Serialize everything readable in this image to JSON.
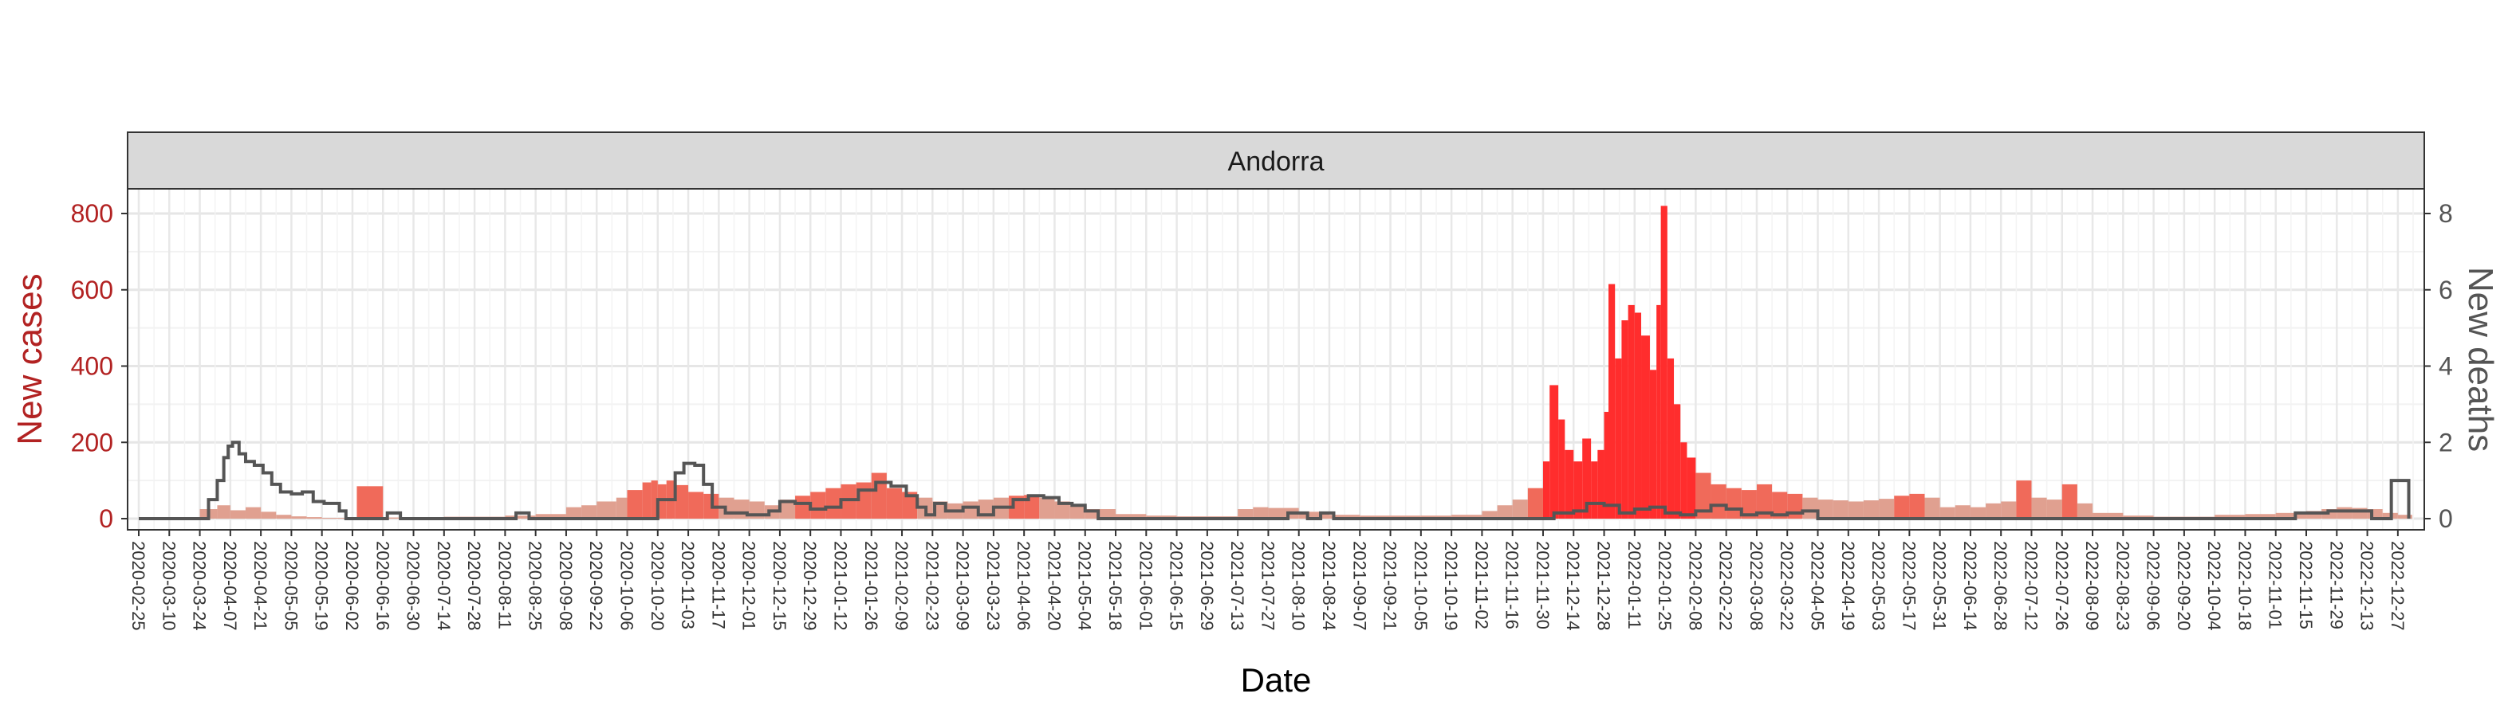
{
  "chart_data": {
    "type": "bar",
    "panel_title": "Andorra",
    "xlabel": "Date",
    "ylabel_left": "New cases",
    "ylabel_right": "New deaths",
    "x_range": [
      "2020-02-25",
      "2023-01-03"
    ],
    "ylim_left": [
      0,
      860
    ],
    "ylim_right": [
      0,
      8.6
    ],
    "y_ticks_left": [
      0,
      200,
      400,
      600,
      800
    ],
    "y_ticks_right": [
      0,
      2,
      4,
      6,
      8
    ],
    "x_tick_labels": [
      "2020-02-25",
      "2020-03-10",
      "2020-03-24",
      "2020-04-07",
      "2020-04-21",
      "2020-05-05",
      "2020-05-19",
      "2020-06-02",
      "2020-06-16",
      "2020-06-30",
      "2020-07-14",
      "2020-07-28",
      "2020-08-11",
      "2020-08-25",
      "2020-09-08",
      "2020-09-22",
      "2020-10-06",
      "2020-10-20",
      "2020-11-03",
      "2020-11-17",
      "2020-12-01",
      "2020-12-15",
      "2020-12-29",
      "2021-01-12",
      "2021-01-26",
      "2021-02-09",
      "2021-02-23",
      "2021-03-09",
      "2021-03-23",
      "2021-04-06",
      "2021-04-20",
      "2021-05-04",
      "2021-05-18",
      "2021-06-01",
      "2021-06-15",
      "2021-06-29",
      "2021-07-13",
      "2021-07-27",
      "2021-08-10",
      "2021-08-24",
      "2021-09-07",
      "2021-09-21",
      "2021-10-05",
      "2021-10-19",
      "2021-11-02",
      "2021-11-16",
      "2021-11-30",
      "2021-12-14",
      "2021-12-28",
      "2022-01-11",
      "2022-01-25",
      "2022-02-08",
      "2022-02-22",
      "2022-03-08",
      "2022-03-22",
      "2022-04-05",
      "2022-04-19",
      "2022-05-03",
      "2022-05-17",
      "2022-05-31",
      "2022-06-14",
      "2022-06-28",
      "2022-07-12",
      "2022-07-26",
      "2022-08-09",
      "2022-08-23",
      "2022-09-06",
      "2022-09-20",
      "2022-10-04",
      "2022-10-18",
      "2022-11-01",
      "2022-11-15",
      "2022-11-29",
      "2022-12-13",
      "2022-12-27"
    ],
    "grid": true,
    "colors": {
      "cases_high": "#ff2d2d",
      "cases_mid": "#f06a5a",
      "cases_low": "#e0a090",
      "deaths_line": "#555555",
      "axis_left_text": "#b22222",
      "axis_right_text": "#555555",
      "strip_fill": "#d9d9d9"
    },
    "series": [
      {
        "name": "New cases",
        "kind": "bars",
        "points": [
          [
            "2020-03-10",
            3
          ],
          [
            "2020-03-24",
            25
          ],
          [
            "2020-04-01",
            35
          ],
          [
            "2020-04-07",
            22
          ],
          [
            "2020-04-14",
            30
          ],
          [
            "2020-04-21",
            18
          ],
          [
            "2020-04-28",
            10
          ],
          [
            "2020-05-05",
            6
          ],
          [
            "2020-05-12",
            4
          ],
          [
            "2020-05-19",
            2
          ],
          [
            "2020-06-04",
            85
          ],
          [
            "2020-06-16",
            3
          ],
          [
            "2020-07-14",
            5
          ],
          [
            "2020-08-11",
            8
          ],
          [
            "2020-08-25",
            12
          ],
          [
            "2020-09-08",
            30
          ],
          [
            "2020-09-15",
            35
          ],
          [
            "2020-09-22",
            45
          ],
          [
            "2020-10-01",
            55
          ],
          [
            "2020-10-06",
            75
          ],
          [
            "2020-10-13",
            95
          ],
          [
            "2020-10-17",
            100
          ],
          [
            "2020-10-20",
            90
          ],
          [
            "2020-10-24",
            100
          ],
          [
            "2020-10-28",
            88
          ],
          [
            "2020-11-03",
            70
          ],
          [
            "2020-11-10",
            65
          ],
          [
            "2020-11-17",
            55
          ],
          [
            "2020-11-24",
            50
          ],
          [
            "2020-12-01",
            45
          ],
          [
            "2020-12-08",
            35
          ],
          [
            "2020-12-15",
            50
          ],
          [
            "2020-12-22",
            60
          ],
          [
            "2020-12-29",
            70
          ],
          [
            "2021-01-05",
            80
          ],
          [
            "2021-01-12",
            90
          ],
          [
            "2021-01-19",
            95
          ],
          [
            "2021-01-26",
            120
          ],
          [
            "2021-02-02",
            80
          ],
          [
            "2021-02-09",
            70
          ],
          [
            "2021-02-16",
            55
          ],
          [
            "2021-02-23",
            45
          ],
          [
            "2021-03-02",
            40
          ],
          [
            "2021-03-09",
            45
          ],
          [
            "2021-03-16",
            50
          ],
          [
            "2021-03-23",
            55
          ],
          [
            "2021-03-30",
            60
          ],
          [
            "2021-04-06",
            62
          ],
          [
            "2021-04-13",
            55
          ],
          [
            "2021-04-20",
            45
          ],
          [
            "2021-04-27",
            35
          ],
          [
            "2021-05-04",
            25
          ],
          [
            "2021-05-18",
            12
          ],
          [
            "2021-06-01",
            8
          ],
          [
            "2021-06-15",
            6
          ],
          [
            "2021-07-13",
            25
          ],
          [
            "2021-07-20",
            30
          ],
          [
            "2021-07-27",
            28
          ],
          [
            "2021-08-10",
            18
          ],
          [
            "2021-08-24",
            10
          ],
          [
            "2021-09-07",
            8
          ],
          [
            "2021-10-05",
            8
          ],
          [
            "2021-10-19",
            10
          ],
          [
            "2021-11-02",
            20
          ],
          [
            "2021-11-09",
            35
          ],
          [
            "2021-11-16",
            50
          ],
          [
            "2021-11-23",
            80
          ],
          [
            "2021-11-30",
            150
          ],
          [
            "2021-12-03",
            350
          ],
          [
            "2021-12-07",
            260
          ],
          [
            "2021-12-10",
            180
          ],
          [
            "2021-12-14",
            150
          ],
          [
            "2021-12-18",
            210
          ],
          [
            "2021-12-22",
            150
          ],
          [
            "2021-12-25",
            180
          ],
          [
            "2021-12-28",
            280
          ],
          [
            "2021-12-30",
            615
          ],
          [
            "2022-01-02",
            420
          ],
          [
            "2022-01-05",
            520
          ],
          [
            "2022-01-08",
            560
          ],
          [
            "2022-01-11",
            540
          ],
          [
            "2022-01-14",
            480
          ],
          [
            "2022-01-18",
            390
          ],
          [
            "2022-01-21",
            560
          ],
          [
            "2022-01-23",
            820
          ],
          [
            "2022-01-26",
            420
          ],
          [
            "2022-01-29",
            300
          ],
          [
            "2022-02-01",
            200
          ],
          [
            "2022-02-04",
            160
          ],
          [
            "2022-02-08",
            120
          ],
          [
            "2022-02-15",
            90
          ],
          [
            "2022-02-22",
            80
          ],
          [
            "2022-03-01",
            75
          ],
          [
            "2022-03-08",
            90
          ],
          [
            "2022-03-15",
            70
          ],
          [
            "2022-03-22",
            65
          ],
          [
            "2022-03-29",
            55
          ],
          [
            "2022-04-05",
            50
          ],
          [
            "2022-04-12",
            48
          ],
          [
            "2022-04-19",
            45
          ],
          [
            "2022-04-26",
            48
          ],
          [
            "2022-05-03",
            52
          ],
          [
            "2022-05-10",
            60
          ],
          [
            "2022-05-17",
            65
          ],
          [
            "2022-05-24",
            55
          ],
          [
            "2022-05-31",
            30
          ],
          [
            "2022-06-07",
            35
          ],
          [
            "2022-06-14",
            30
          ],
          [
            "2022-06-21",
            40
          ],
          [
            "2022-06-28",
            45
          ],
          [
            "2022-07-05",
            100
          ],
          [
            "2022-07-12",
            55
          ],
          [
            "2022-07-19",
            50
          ],
          [
            "2022-07-26",
            90
          ],
          [
            "2022-08-02",
            40
          ],
          [
            "2022-08-09",
            15
          ],
          [
            "2022-08-23",
            8
          ],
          [
            "2022-09-06",
            5
          ],
          [
            "2022-09-20",
            5
          ],
          [
            "2022-10-04",
            10
          ],
          [
            "2022-10-18",
            12
          ],
          [
            "2022-11-01",
            15
          ],
          [
            "2022-11-15",
            20
          ],
          [
            "2022-11-22",
            25
          ],
          [
            "2022-11-29",
            30
          ],
          [
            "2022-12-06",
            28
          ],
          [
            "2022-12-13",
            25
          ],
          [
            "2022-12-20",
            15
          ],
          [
            "2022-12-27",
            10
          ]
        ]
      },
      {
        "name": "New deaths",
        "kind": "line",
        "points": [
          [
            "2020-02-25",
            0
          ],
          [
            "2020-03-20",
            0
          ],
          [
            "2020-03-28",
            0.5
          ],
          [
            "2020-04-01",
            1
          ],
          [
            "2020-04-04",
            1.6
          ],
          [
            "2020-04-06",
            1.9
          ],
          [
            "2020-04-08",
            2
          ],
          [
            "2020-04-11",
            1.7
          ],
          [
            "2020-04-14",
            1.5
          ],
          [
            "2020-04-18",
            1.4
          ],
          [
            "2020-04-22",
            1.2
          ],
          [
            "2020-04-26",
            0.9
          ],
          [
            "2020-04-30",
            0.7
          ],
          [
            "2020-05-05",
            0.65
          ],
          [
            "2020-05-10",
            0.7
          ],
          [
            "2020-05-15",
            0.45
          ],
          [
            "2020-05-20",
            0.4
          ],
          [
            "2020-05-27",
            0.2
          ],
          [
            "2020-05-30",
            0
          ],
          [
            "2020-06-16",
            0
          ],
          [
            "2020-06-18",
            0.15
          ],
          [
            "2020-06-22",
            0.15
          ],
          [
            "2020-06-24",
            0
          ],
          [
            "2020-08-14",
            0
          ],
          [
            "2020-08-16",
            0.15
          ],
          [
            "2020-08-20",
            0.15
          ],
          [
            "2020-08-22",
            0
          ],
          [
            "2020-10-13",
            0
          ],
          [
            "2020-10-20",
            0.5
          ],
          [
            "2020-10-28",
            1.2
          ],
          [
            "2020-11-01",
            1.45
          ],
          [
            "2020-11-06",
            1.4
          ],
          [
            "2020-11-10",
            0.9
          ],
          [
            "2020-11-14",
            0.3
          ],
          [
            "2020-11-20",
            0.15
          ],
          [
            "2020-11-30",
            0.1
          ],
          [
            "2020-12-10",
            0.2
          ],
          [
            "2020-12-15",
            0.45
          ],
          [
            "2020-12-22",
            0.4
          ],
          [
            "2020-12-29",
            0.25
          ],
          [
            "2021-01-05",
            0.3
          ],
          [
            "2021-01-12",
            0.5
          ],
          [
            "2021-01-20",
            0.75
          ],
          [
            "2021-01-28",
            0.95
          ],
          [
            "2021-02-04",
            0.85
          ],
          [
            "2021-02-11",
            0.6
          ],
          [
            "2021-02-16",
            0.3
          ],
          [
            "2021-02-20",
            0.1
          ],
          [
            "2021-02-24",
            0.4
          ],
          [
            "2021-03-01",
            0.2
          ],
          [
            "2021-03-09",
            0.3
          ],
          [
            "2021-03-16",
            0.1
          ],
          [
            "2021-03-23",
            0.3
          ],
          [
            "2021-04-01",
            0.5
          ],
          [
            "2021-04-08",
            0.6
          ],
          [
            "2021-04-15",
            0.55
          ],
          [
            "2021-04-22",
            0.4
          ],
          [
            "2021-04-28",
            0.35
          ],
          [
            "2021-05-04",
            0.2
          ],
          [
            "2021-05-10",
            0
          ],
          [
            "2021-08-01",
            0
          ],
          [
            "2021-08-05",
            0.15
          ],
          [
            "2021-08-10",
            0.15
          ],
          [
            "2021-08-14",
            0
          ],
          [
            "2021-08-20",
            0.15
          ],
          [
            "2021-08-26",
            0
          ],
          [
            "2021-11-25",
            0
          ],
          [
            "2021-12-05",
            0.15
          ],
          [
            "2021-12-14",
            0.2
          ],
          [
            "2021-12-20",
            0.4
          ],
          [
            "2021-12-28",
            0.35
          ],
          [
            "2022-01-04",
            0.15
          ],
          [
            "2022-01-11",
            0.25
          ],
          [
            "2022-01-18",
            0.3
          ],
          [
            "2022-01-25",
            0.15
          ],
          [
            "2022-02-01",
            0.1
          ],
          [
            "2022-02-08",
            0.2
          ],
          [
            "2022-02-15",
            0.35
          ],
          [
            "2022-02-22",
            0.25
          ],
          [
            "2022-03-01",
            0.1
          ],
          [
            "2022-03-08",
            0.15
          ],
          [
            "2022-03-15",
            0.1
          ],
          [
            "2022-03-22",
            0.15
          ],
          [
            "2022-03-29",
            0.2
          ],
          [
            "2022-04-05",
            0
          ],
          [
            "2022-11-08",
            0
          ],
          [
            "2022-11-10",
            0.15
          ],
          [
            "2022-11-20",
            0.15
          ],
          [
            "2022-11-25",
            0.2
          ],
          [
            "2022-12-05",
            0.2
          ],
          [
            "2022-12-15",
            0
          ],
          [
            "2022-12-22",
            0
          ],
          [
            "2022-12-24",
            1
          ],
          [
            "2022-12-30",
            1
          ],
          [
            "2023-01-01",
            0
          ]
        ]
      }
    ]
  }
}
